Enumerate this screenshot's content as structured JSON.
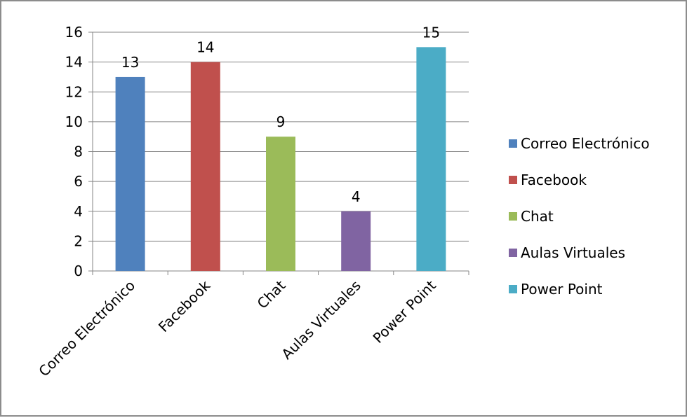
{
  "chart_data": {
    "type": "bar",
    "title": "",
    "xlabel": "",
    "ylabel": "",
    "categories": [
      "Correo Electrónico",
      "Facebook",
      "Chat",
      "Aulas Virtuales",
      "Power Point"
    ],
    "values": [
      13,
      14,
      9,
      4,
      15
    ],
    "colors": [
      "#4f81bd",
      "#c0504d",
      "#9bbb59",
      "#8064a2",
      "#4bacc6"
    ],
    "ylim": [
      0,
      16
    ],
    "yticks": [
      0,
      2,
      4,
      6,
      8,
      10,
      12,
      14,
      16
    ],
    "grid": true,
    "data_labels": true,
    "legend": {
      "position": "right",
      "entries": [
        "Correo Electrónico",
        "Facebook",
        "Chat",
        "Aulas Virtuales",
        "Power Point"
      ]
    }
  }
}
